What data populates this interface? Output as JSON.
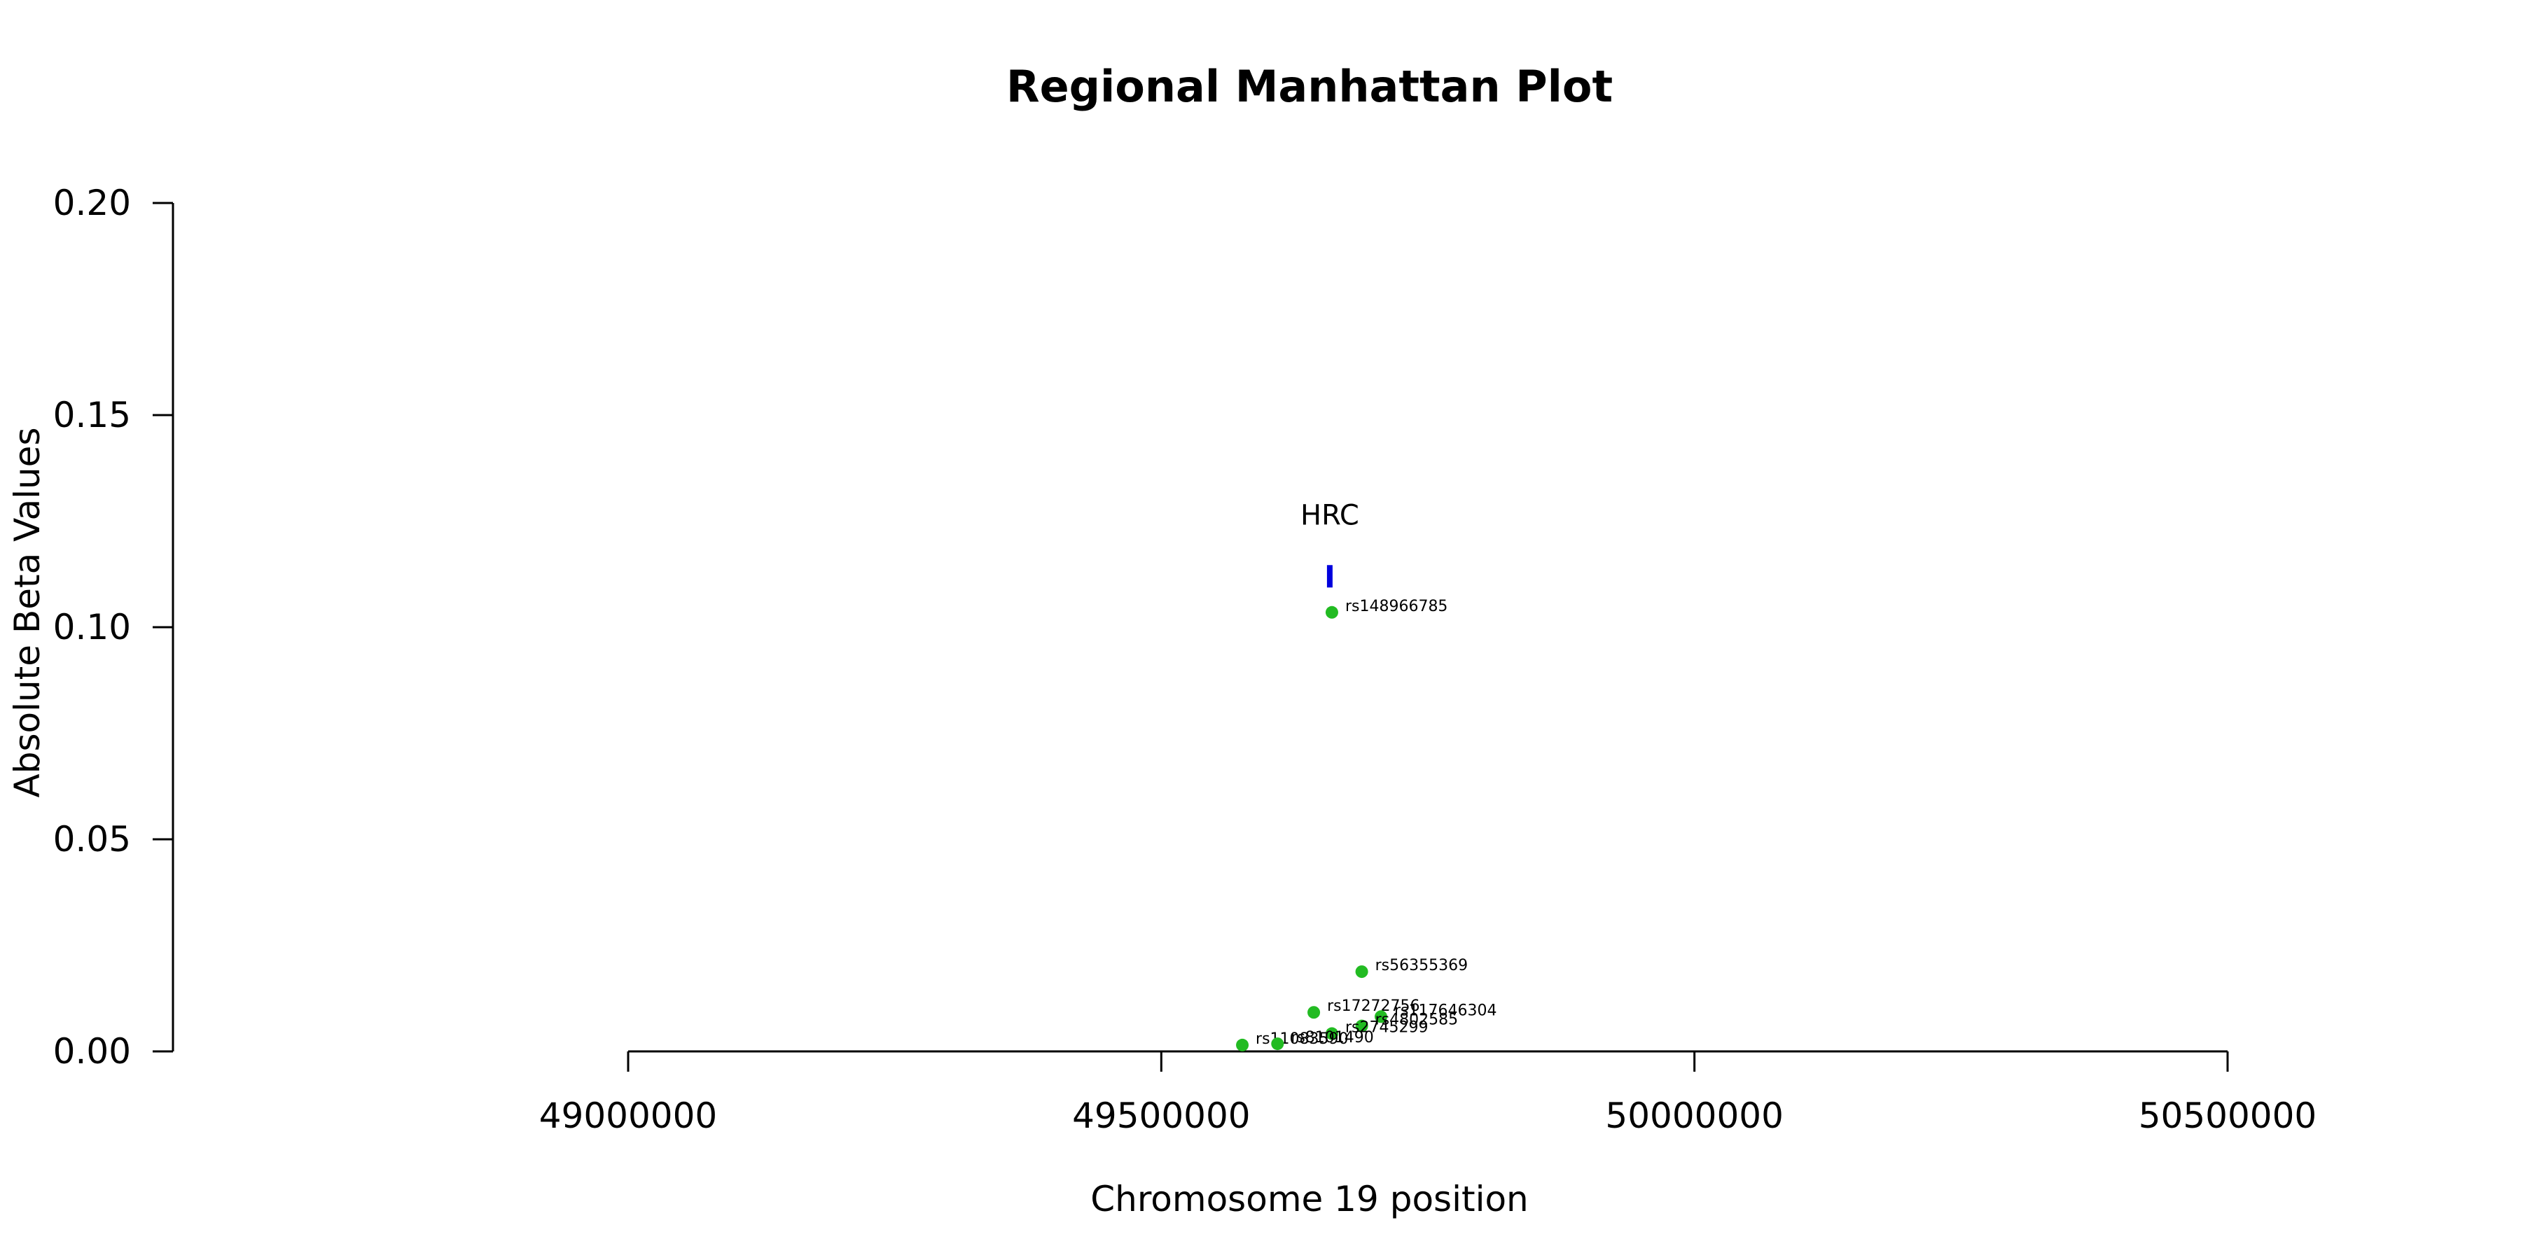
{
  "chart_data": {
    "type": "scatter",
    "title": "Regional Manhattan Plot",
    "xlabel": "Chromosome 19 position",
    "ylabel": "Absolute Beta Values",
    "xlim": [
      49000000,
      50500000
    ],
    "ylim": [
      0,
      0.2
    ],
    "x_ticks": [
      49000000,
      49500000,
      50000000,
      50500000
    ],
    "x_tick_labels": [
      "49000000",
      "49500000",
      "50000000",
      "50500000"
    ],
    "y_ticks": [
      0,
      0.05,
      0.1,
      0.15,
      0.2
    ],
    "y_tick_labels": [
      "0.00",
      "0.05",
      "0.10",
      "0.15",
      "0.20"
    ],
    "grid": false,
    "point_color": "#22bb22",
    "points": [
      {
        "label": "rs148966785",
        "x": 49660000,
        "y": 0.1035
      },
      {
        "label": "rs56355369",
        "x": 49688000,
        "y": 0.0188
      },
      {
        "label": "rs17272756",
        "x": 49643000,
        "y": 0.0092
      },
      {
        "label": "rs117646304",
        "x": 49706000,
        "y": 0.0082
      },
      {
        "label": "rs4802585",
        "x": 49688000,
        "y": 0.006
      },
      {
        "label": "rs2745299",
        "x": 49660000,
        "y": 0.0042
      },
      {
        "label": "rs11083590",
        "x": 49576000,
        "y": 0.0015
      },
      {
        "label": "rs8101490",
        "x": 49609000,
        "y": 0.0018
      }
    ],
    "genes": [
      {
        "name": "HRC",
        "x": 49658000,
        "y": 0.112,
        "color": "#0000dd"
      }
    ]
  }
}
